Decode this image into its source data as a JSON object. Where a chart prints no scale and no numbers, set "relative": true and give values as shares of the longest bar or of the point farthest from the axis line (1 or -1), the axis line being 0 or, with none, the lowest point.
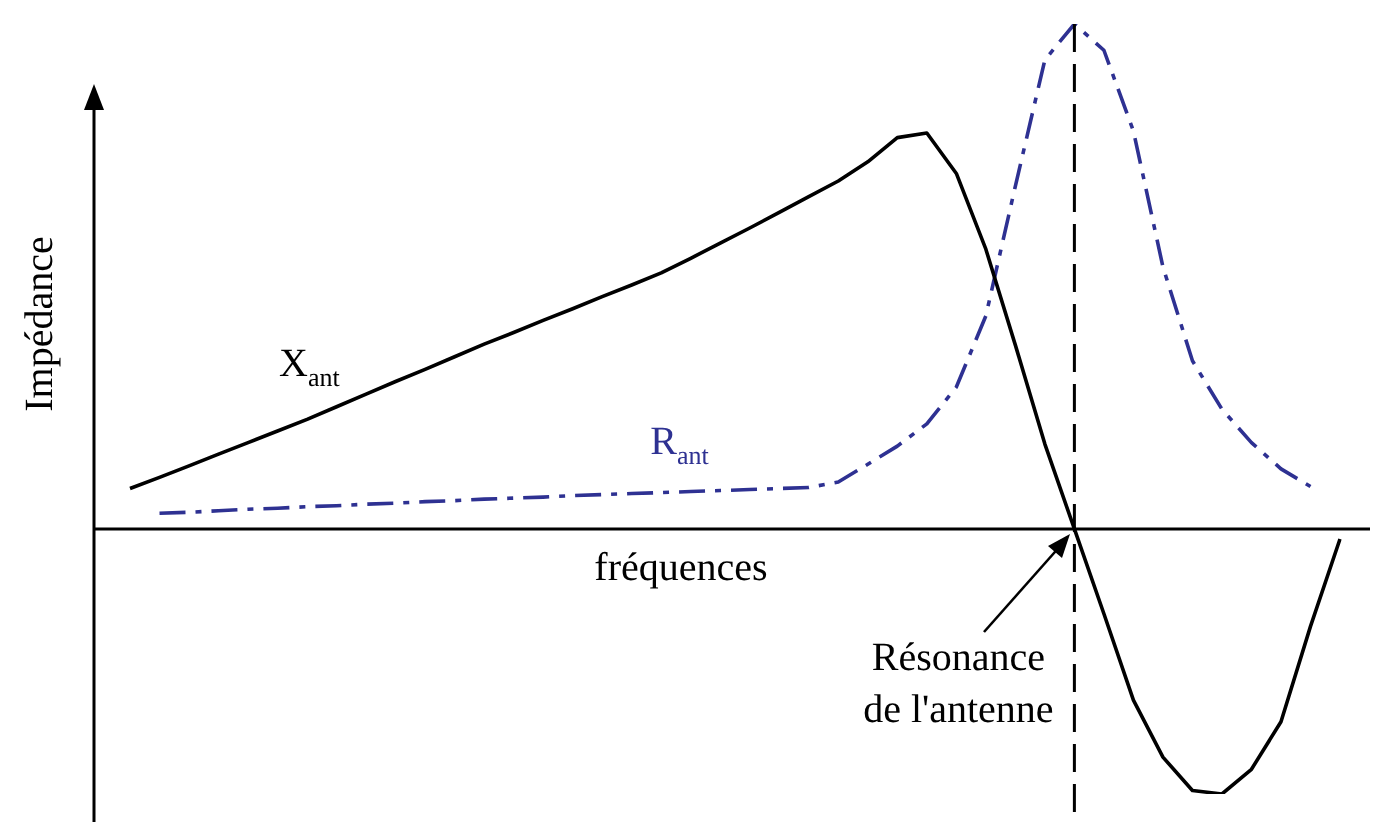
{
  "chart_data": {
    "type": "line",
    "relative": true,
    "xlabel": "fréquences",
    "ylabel": "Impédance",
    "marker": "none",
    "categories": [
      null,
      null,
      null,
      null,
      null,
      null,
      null,
      null,
      null,
      null,
      null,
      null,
      null,
      null,
      null,
      null,
      null,
      null,
      null,
      null,
      null,
      null,
      null,
      null,
      null,
      null,
      null,
      null,
      null,
      null,
      null,
      null,
      null,
      null,
      null,
      null,
      null,
      null,
      null,
      null,
      null,
      null
    ],
    "series": [
      {
        "name": "X$_{ant}$",
        "color": "#000000",
        "line_style": "solid",
        "values": [
          0.08,
          0.102,
          0.125,
          0.148,
          0.171,
          0.194,
          0.217,
          0.242,
          0.267,
          0.292,
          0.316,
          0.341,
          0.366,
          0.389,
          0.413,
          0.436,
          0.46,
          0.483,
          0.507,
          0.536,
          0.566,
          0.596,
          0.627,
          0.658,
          0.689,
          0.727,
          0.775,
          0.784,
          0.704,
          0.554,
          0.364,
          0.168,
          0,
          -0.168,
          -0.339,
          -0.452,
          -0.518,
          -0.525,
          -0.476,
          -0.382,
          -0.193,
          -0.02
        ]
      },
      {
        "name": "R$_{ant}$",
        "color": "#2e3192",
        "line_style": "dashed",
        "values": [
          null,
          0.031,
          0.033,
          0.036,
          0.039,
          0.041,
          0.044,
          0.046,
          0.049,
          0.051,
          0.054,
          0.056,
          0.059,
          0.061,
          0.063,
          0.066,
          0.068,
          0.07,
          0.072,
          0.074,
          0.076,
          0.078,
          0.08,
          0.082,
          0.093,
          0.128,
          0.164,
          0.208,
          0.281,
          0.422,
          0.679,
          0.929,
          1,
          0.948,
          0.788,
          0.519,
          0.333,
          0.237,
          0.171,
          0.119,
          0.084,
          null
        ]
      }
    ],
    "annotations": [
      "Résonance de l'antenne"
    ]
  }
}
